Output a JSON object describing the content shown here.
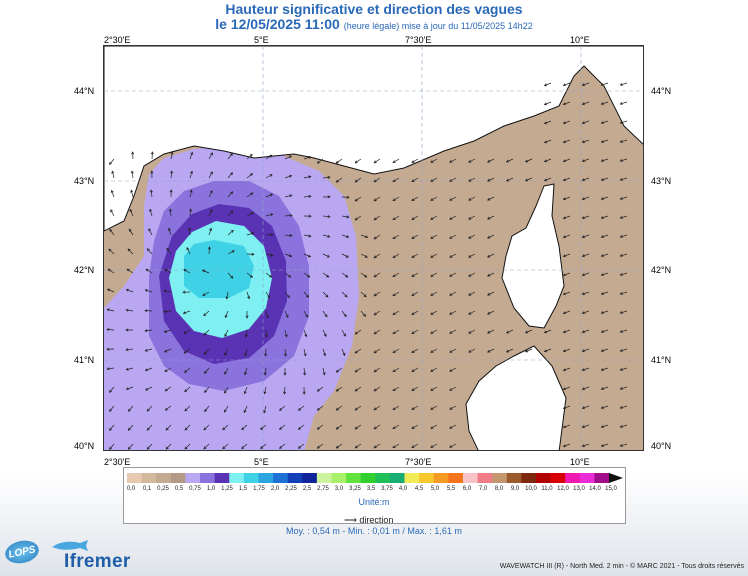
{
  "title": {
    "main": "Hauteur significative et direction des vagues",
    "date": "le 12/05/2025 11:00",
    "note": "(heure légale) mise à jour du 11/05/2025 14h22"
  },
  "map": {
    "lon_ticks": [
      "2°30'E",
      "5°E",
      "7°30'E",
      "10°E"
    ],
    "lat_ticks": [
      "44°N",
      "43°N",
      "42°N",
      "41°N",
      "40°N"
    ],
    "lon_range": [
      2.5,
      11.0
    ],
    "lat_range": [
      40.0,
      44.5
    ],
    "grid": true
  },
  "legend": {
    "labels": [
      "0,0",
      "0,1",
      "0,25",
      "0,5",
      "0,75",
      "1,0",
      "1,25",
      "1,5",
      "1,75",
      "2,0",
      "2,25",
      "2,5",
      "2,75",
      "3,0",
      "3,25",
      "3,5",
      "3,75",
      "4,0",
      "4,5",
      "5,0",
      "5,5",
      "6,0",
      "7,0",
      "8,0",
      "9,0",
      "10,0",
      "11,0",
      "12,0",
      "13,0",
      "14,0",
      "15,0"
    ],
    "colors": [
      "#e7c9b0",
      "#d4b89c",
      "#c5aa92",
      "#b29a86",
      "#b9a7f2",
      "#8a73dc",
      "#5a32b4",
      "#7ef0f2",
      "#3fd2e6",
      "#2aa5e0",
      "#1e72d6",
      "#1240b8",
      "#0f249a",
      "#cdf39c",
      "#a6f06a",
      "#62e23c",
      "#33cf2f",
      "#1fc057",
      "#17ad73",
      "#f3ea5a",
      "#f6c82e",
      "#f59a22",
      "#f4741c",
      "#f7c3c6",
      "#f07c88",
      "#c49670",
      "#9b5a2c",
      "#7e2810",
      "#b00000",
      "#d80000",
      "#ef18b0",
      "#ea2bd6",
      "#a00c8a"
    ],
    "unit": "Unité:m",
    "direction_label": "direction"
  },
  "stats": {
    "text": "Moy. : 0,54 m   -   Min. : 0,01 m / Max. : 1,61 m"
  },
  "logos": {
    "lops": "LOPS",
    "ifremer": "Ifremer"
  },
  "credits": "WAVEWATCH III (R) - North Med. 2 min - © MARC 2021 - Tous droits réservés"
}
